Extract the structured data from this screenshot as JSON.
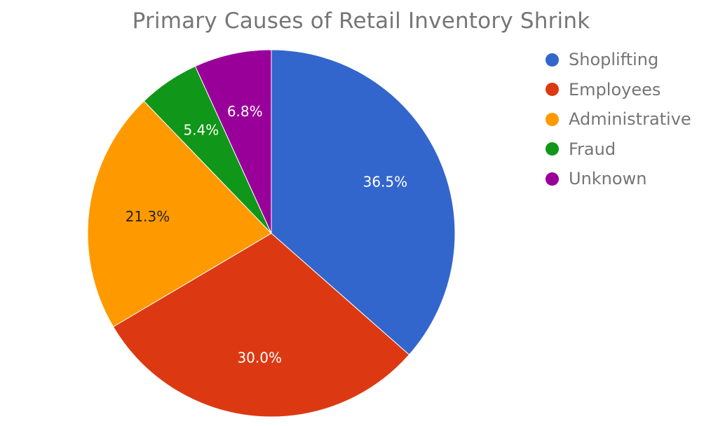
{
  "chart_data": {
    "type": "pie",
    "title": "Primary Causes of Retail Inventory Shrink",
    "categories": [
      "Shoplifting",
      "Employees",
      "Administrative",
      "Fraud",
      "Unknown"
    ],
    "values": [
      36.5,
      30.0,
      21.3,
      5.4,
      6.8
    ],
    "labels": [
      "36.5%",
      "30.0%",
      "21.3%",
      "5.4%",
      "6.8%"
    ],
    "colors": [
      "#3366cc",
      "#dc3912",
      "#ff9900",
      "#109618",
      "#990099"
    ],
    "label_colors": [
      "#ffffff",
      "#ffffff",
      "#222222",
      "#ffffff",
      "#ffffff"
    ],
    "start_angle": "12 o'clock",
    "direction": "clockwise",
    "legend_position": "right"
  }
}
